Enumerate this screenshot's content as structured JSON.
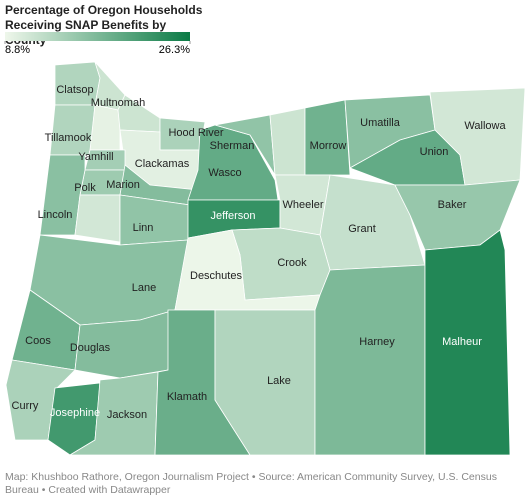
{
  "chart_data": {
    "type": "choropleth",
    "title": "Percentage of Oregon Households Receiving SNAP Benefits by County",
    "legend": {
      "min": {
        "value": 8.8,
        "label": "8.8%"
      },
      "max": {
        "value": 26.3,
        "label": "26.3%"
      }
    },
    "color_scale": [
      "#eff7eb",
      "#0a7a45"
    ],
    "counties": [
      {
        "name": "Clatsop",
        "value": 13.5
      },
      {
        "name": null,
        "value": 11.5
      },
      {
        "name": "Tillamook",
        "value": 13.5
      },
      {
        "name": null,
        "value": 9.5
      },
      {
        "name": "Multnomah",
        "value": 11.5
      },
      {
        "name": "Hood River",
        "value": 14
      },
      {
        "name": "Clackamas",
        "value": 9.8
      },
      {
        "name": "Yamhill",
        "value": 14.5
      },
      {
        "name": "Polk",
        "value": 15
      },
      {
        "name": "Marion",
        "value": 17
      },
      {
        "name": "Lincoln",
        "value": 16.5
      },
      {
        "name": null,
        "value": 11
      },
      {
        "name": "Linn",
        "value": 16
      },
      {
        "name": "Lane",
        "value": 16.5
      },
      {
        "name": "Wasco",
        "value": 19.5
      },
      {
        "name": "Sherman",
        "value": 16
      },
      {
        "name": null,
        "value": 11.5
      },
      {
        "name": "Morrow",
        "value": 18.5
      },
      {
        "name": "Umatilla",
        "value": 16.5
      },
      {
        "name": "Union",
        "value": 19.5
      },
      {
        "name": "Wallowa",
        "value": 11
      },
      {
        "name": "Jefferson",
        "value": 23
      },
      {
        "name": "Wheeler",
        "value": 11
      },
      {
        "name": "Grant",
        "value": 12
      },
      {
        "name": "Baker",
        "value": 15.5
      },
      {
        "name": "Crook",
        "value": 12.5
      },
      {
        "name": "Deschutes",
        "value": 9
      },
      {
        "name": "Coos",
        "value": 18.5
      },
      {
        "name": "Douglas",
        "value": 17
      },
      {
        "name": "Curry",
        "value": 14
      },
      {
        "name": "Josephine",
        "value": 22
      },
      {
        "name": "Jackson",
        "value": 15
      },
      {
        "name": "Klamath",
        "value": 19
      },
      {
        "name": "Lake",
        "value": 13.5
      },
      {
        "name": "Harney",
        "value": 17.5
      },
      {
        "name": "Malheur",
        "value": 24.5
      }
    ],
    "source": "Map: Khushboo Rathore, Oregon Journalism Project • Source: American Community Survey, U.S. Census Bureau • Created with Datawrapper"
  }
}
